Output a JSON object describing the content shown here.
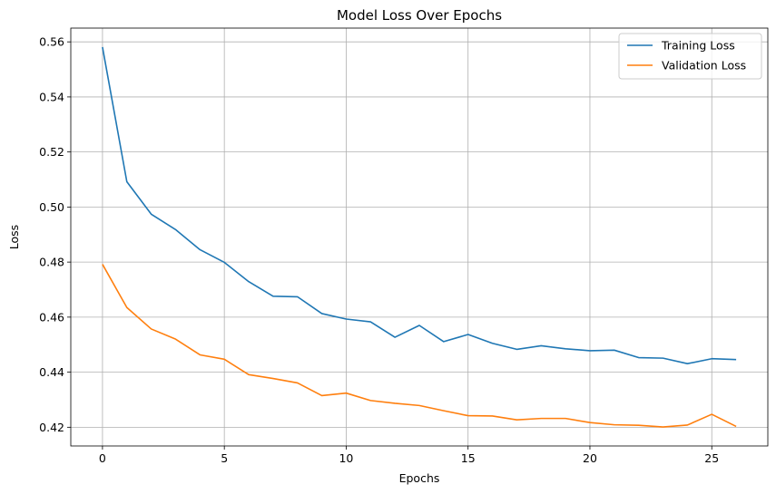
{
  "chart_data": {
    "type": "line",
    "title": "Model Loss Over Epochs",
    "xlabel": "Epochs",
    "ylabel": "Loss",
    "xlim": [
      -1.3,
      27.3
    ],
    "ylim": [
      0.4132,
      0.565
    ],
    "xticks": [
      0,
      5,
      10,
      15,
      20,
      25
    ],
    "yticks": [
      0.42,
      0.44,
      0.46,
      0.48,
      0.5,
      0.52,
      0.54,
      0.56
    ],
    "ytick_labels": [
      "0.42",
      "0.44",
      "0.46",
      "0.48",
      "0.50",
      "0.52",
      "0.54",
      "0.56"
    ],
    "grid": true,
    "legend_position": "top-right",
    "x": [
      0,
      1,
      2,
      3,
      4,
      5,
      6,
      7,
      8,
      9,
      10,
      11,
      12,
      13,
      14,
      15,
      16,
      17,
      18,
      19,
      20,
      21,
      22,
      23,
      24,
      25,
      26
    ],
    "series": [
      {
        "name": "Training Loss",
        "color": "#1f77b4",
        "values": [
          0.5581,
          0.5092,
          0.4974,
          0.4918,
          0.4845,
          0.4799,
          0.4729,
          0.4676,
          0.4674,
          0.4613,
          0.4593,
          0.4583,
          0.4527,
          0.457,
          0.4511,
          0.4537,
          0.4505,
          0.4483,
          0.4496,
          0.4485,
          0.4478,
          0.448,
          0.4453,
          0.4451,
          0.4431,
          0.4449,
          0.4446
        ]
      },
      {
        "name": "Validation Loss",
        "color": "#ff7f0e",
        "values": [
          0.4792,
          0.4635,
          0.4557,
          0.452,
          0.4463,
          0.4447,
          0.4391,
          0.4377,
          0.4361,
          0.4315,
          0.4324,
          0.4297,
          0.4287,
          0.4279,
          0.426,
          0.4242,
          0.4241,
          0.4227,
          0.4232,
          0.4232,
          0.4217,
          0.4209,
          0.4207,
          0.4201,
          0.4208,
          0.4247,
          0.4203
        ]
      }
    ]
  }
}
